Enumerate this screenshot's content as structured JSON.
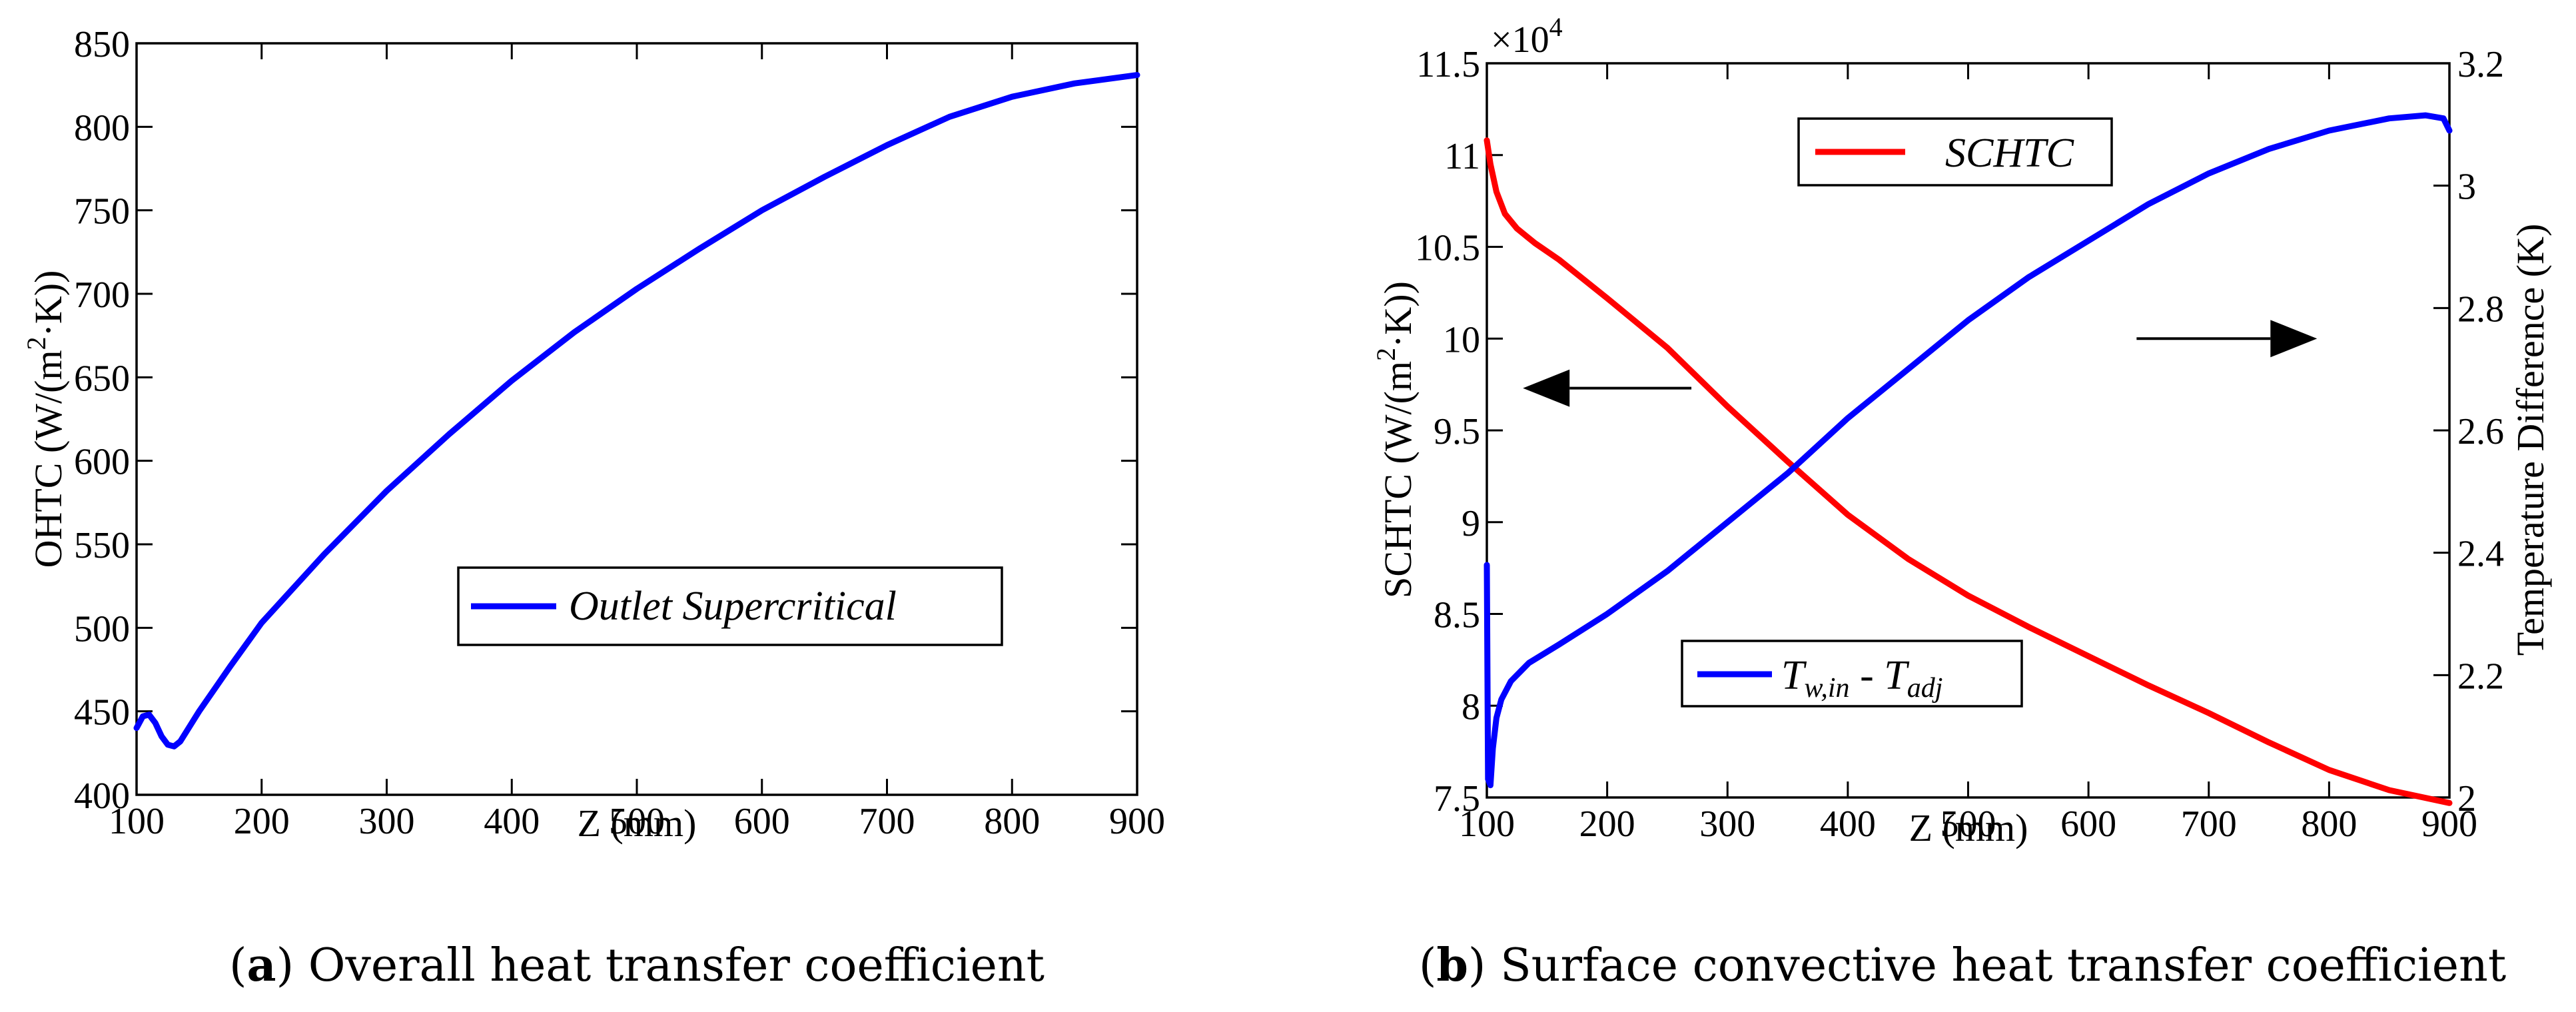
{
  "chart_data": [
    {
      "id": "a",
      "type": "line",
      "caption_letter": "a",
      "caption_text": " Overall heat transfer coefficient",
      "xlabel": "Z (mm)",
      "ylabel_prefix": "OHTC (W/(m",
      "ylabel_sup": "2",
      "ylabel_suffix": "·K))",
      "xlim": [
        100,
        900
      ],
      "ylim": [
        400,
        850
      ],
      "xticks": [
        100,
        200,
        300,
        400,
        500,
        600,
        700,
        800,
        900
      ],
      "yticks": [
        400,
        450,
        500,
        550,
        600,
        650,
        700,
        750,
        800,
        850
      ],
      "series": [
        {
          "name": "Outlet Supercritical",
          "color": "#0000ff",
          "axis": "left",
          "x": [
            100,
            105,
            110,
            115,
            120,
            125,
            130,
            135,
            140,
            150,
            175,
            200,
            250,
            300,
            350,
            400,
            450,
            500,
            550,
            600,
            650,
            700,
            750,
            800,
            850,
            900
          ],
          "y": [
            440,
            447,
            448,
            443,
            435,
            430,
            429,
            432,
            438,
            450,
            477,
            503,
            544,
            582,
            616,
            648,
            677,
            703,
            727,
            750,
            770,
            789,
            806,
            818,
            826,
            831
          ]
        }
      ],
      "legend": {
        "position": "center-right"
      }
    },
    {
      "id": "b",
      "type": "line",
      "caption_letter": "b",
      "caption_text": " Surface convective heat transfer coefficient",
      "xlabel": "Z (mm)",
      "ylabel_prefix": "SCHTC (W/(m",
      "ylabel_sup": "2",
      "ylabel_suffix": "·K))",
      "ylabel_right": "Temperature Difference (K)",
      "scale_label": "×10",
      "scale_exp": "4",
      "xlim": [
        100,
        900
      ],
      "ylim": [
        7.5,
        11.5
      ],
      "ylim_right": [
        2.0,
        3.2
      ],
      "xticks": [
        100,
        200,
        300,
        400,
        500,
        600,
        700,
        800,
        900
      ],
      "yticks": [
        7.5,
        8,
        8.5,
        9,
        9.5,
        10,
        10.5,
        11,
        11.5
      ],
      "yticks_labels": [
        "7.5",
        "8",
        "8.5",
        "9",
        "9.5",
        "10",
        "10.5",
        "11",
        "11.5"
      ],
      "yticks_right": [
        2.0,
        2.2,
        2.4,
        2.6,
        2.8,
        3.0,
        3.2
      ],
      "yticks_right_labels": [
        "2",
        "2.2",
        "2.4",
        "2.6",
        "2.8",
        "3",
        "3.2"
      ],
      "series": [
        {
          "name": "SCHTC",
          "color": "#ff0000",
          "axis": "left",
          "x": [
            100,
            103,
            108,
            115,
            125,
            140,
            160,
            200,
            250,
            300,
            350,
            400,
            450,
            500,
            550,
            600,
            650,
            700,
            750,
            800,
            850,
            900
          ],
          "y": [
            11.08,
            10.95,
            10.8,
            10.68,
            10.6,
            10.52,
            10.43,
            10.22,
            9.95,
            9.63,
            9.33,
            9.04,
            8.8,
            8.6,
            8.43,
            8.27,
            8.11,
            7.96,
            7.8,
            7.65,
            7.54,
            7.47
          ]
        },
        {
          "name": "T_w,in - T_adj",
          "name_main": "T",
          "name_sub1": "w,in",
          "name_mid": " - T",
          "name_sub2": "adj",
          "color": "#0000ff",
          "axis": "right",
          "x": [
            100,
            101,
            103,
            105,
            108,
            112,
            120,
            135,
            160,
            200,
            250,
            300,
            350,
            400,
            450,
            500,
            550,
            600,
            650,
            700,
            750,
            800,
            850,
            880,
            895,
            900
          ],
          "y": [
            2.38,
            2.03,
            2.02,
            2.08,
            2.13,
            2.16,
            2.19,
            2.22,
            2.25,
            2.3,
            2.37,
            2.45,
            2.53,
            2.62,
            2.7,
            2.78,
            2.85,
            2.91,
            2.97,
            3.02,
            3.06,
            3.09,
            3.11,
            3.115,
            3.11,
            3.09
          ]
        }
      ],
      "arrows": [
        {
          "direction": "left",
          "x_from": 270,
          "x_to": 130,
          "y": 9.73
        },
        {
          "direction": "right",
          "x_from": 640,
          "x_to": 790,
          "y": 10.0
        }
      ],
      "legend": {
        "position": "top-center"
      }
    }
  ]
}
